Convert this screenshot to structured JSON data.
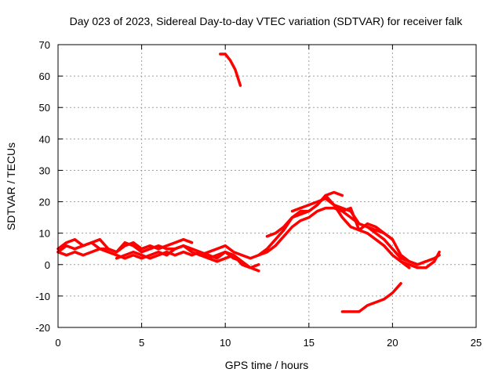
{
  "chart_data": {
    "type": "line",
    "title": "Day 023 of 2023, Sidereal Day-to-day VTEC variation (SDTVAR) for receiver falk",
    "xlabel": "GPS time / hours",
    "ylabel": "SDTVAR / TECUs",
    "xlim": [
      0,
      25
    ],
    "ylim": [
      -20,
      70
    ],
    "xticks": [
      0,
      5,
      10,
      15,
      20,
      25
    ],
    "yticks": [
      -20,
      -10,
      0,
      10,
      20,
      30,
      40,
      50,
      60,
      70
    ],
    "grid": true,
    "legend": "none",
    "series_color": "#ff0000",
    "series": [
      {
        "name": "track-1",
        "x": [
          0.0,
          0.5,
          1.0,
          1.5,
          2.0,
          2.5,
          3.0,
          3.5,
          4.0,
          4.5,
          5.0,
          5.5,
          6.0,
          6.5,
          7.0,
          7.5,
          8.0,
          8.5,
          9.0,
          9.5,
          10.0,
          10.5,
          11.0
        ],
        "y": [
          4,
          6,
          5,
          6,
          7,
          5,
          5,
          4,
          7,
          6,
          4,
          5,
          6,
          5,
          5,
          6,
          4,
          3,
          2,
          3,
          4,
          2,
          1
        ]
      },
      {
        "name": "track-2",
        "x": [
          0.0,
          0.5,
          1.0,
          1.5,
          2.0,
          2.5,
          3.5,
          4.0,
          4.5,
          5.0,
          5.5,
          6.0,
          6.5,
          7.0,
          7.5,
          8.0,
          8.5,
          9.0,
          9.5,
          10.0,
          10.5,
          11.0,
          11.5,
          12.0
        ],
        "y": [
          4,
          3,
          4,
          3,
          4,
          5,
          3,
          2,
          3,
          2,
          3,
          4,
          3,
          5,
          6,
          5,
          4,
          3,
          2,
          4,
          3,
          0,
          -1,
          0
        ]
      },
      {
        "name": "track-3",
        "x": [
          0.0,
          0.5,
          1.0,
          1.5,
          2.0,
          2.5,
          3.0,
          3.5,
          4.0,
          4.5,
          5.0,
          5.5,
          6.0,
          6.5,
          7.0,
          7.5,
          8.0
        ],
        "y": [
          5,
          7,
          8,
          6,
          7,
          8,
          5,
          4,
          6,
          7,
          5,
          6,
          5,
          6,
          7,
          8,
          7
        ]
      },
      {
        "name": "track-4",
        "x": [
          3.5,
          4.0,
          4.5,
          5.0,
          5.5,
          6.0,
          6.5,
          7.0,
          7.5,
          8.0,
          8.5,
          9.0,
          9.5,
          10.0,
          10.5,
          11.0,
          11.5,
          12.0
        ],
        "y": [
          2,
          3,
          4,
          3,
          2,
          3,
          4,
          3,
          4,
          3,
          4,
          2,
          1,
          2,
          3,
          1,
          -1,
          -2
        ]
      },
      {
        "name": "track-5",
        "x": [
          8.5,
          9.0,
          9.5,
          10.0,
          10.5,
          11.0,
          11.5,
          12.0,
          12.5,
          13.0,
          13.5,
          14.0,
          14.5,
          15.0,
          15.5,
          16.0,
          16.5,
          17.0,
          17.5,
          18.0,
          18.5,
          19.0,
          19.5,
          20.0,
          20.5,
          21.0
        ],
        "y": [
          3,
          4,
          5,
          6,
          4,
          3,
          2,
          3,
          5,
          8,
          11,
          15,
          17,
          17,
          19,
          22,
          19,
          15,
          12,
          11,
          10,
          8,
          6,
          3,
          1,
          -1
        ]
      },
      {
        "name": "track-6",
        "x": [
          12.5,
          13.0,
          13.5,
          14.0,
          14.5,
          15.0,
          15.5,
          16.0,
          16.5,
          17.0
        ],
        "y": [
          9,
          10,
          12,
          15,
          16,
          17,
          19,
          22,
          23,
          22
        ]
      },
      {
        "name": "track-7",
        "x": [
          12.0,
          12.5,
          13.0,
          13.5,
          14.0,
          14.5,
          15.0,
          15.5,
          16.0,
          16.5,
          17.0,
          17.5,
          18.0,
          18.5,
          19.0,
          19.5,
          20.0,
          20.5,
          21.0,
          21.5,
          22.0
        ],
        "y": [
          3,
          4,
          6,
          9,
          12,
          14,
          15,
          17,
          18,
          18,
          17,
          15,
          13,
          12,
          10,
          8,
          5,
          2,
          1,
          0,
          1
        ]
      },
      {
        "name": "track-8",
        "x": [
          14.0,
          14.5,
          15.0,
          15.5,
          16.0,
          16.5,
          17.0,
          17.5,
          18.0,
          18.5,
          19.0,
          19.5,
          20.0,
          20.5,
          21.0,
          21.5,
          22.0,
          22.5,
          22.8
        ],
        "y": [
          17,
          18,
          19,
          20,
          21,
          19,
          17,
          18,
          11,
          13,
          12,
          10,
          8,
          3,
          1,
          0,
          1,
          2,
          3
        ]
      },
      {
        "name": "track-9",
        "x": [
          16.5,
          17.0,
          17.5,
          18.0,
          18.5,
          19.0,
          19.5,
          20.0
        ],
        "y": [
          19,
          18,
          17,
          13,
          12,
          11,
          10,
          8
        ]
      },
      {
        "name": "track-10",
        "x": [
          20.5,
          21.0,
          21.5,
          22.0,
          22.5,
          22.8
        ],
        "y": [
          1,
          0,
          -1,
          -1,
          1,
          4
        ]
      },
      {
        "name": "track-11",
        "x": [
          17.0,
          17.5,
          18.0,
          18.5,
          19.0,
          19.5,
          20.0,
          20.5
        ],
        "y": [
          -15,
          -15,
          -15,
          -13,
          -12,
          -11,
          -9,
          -6
        ]
      },
      {
        "name": "track-12",
        "x": [
          9.7,
          10.0,
          10.3,
          10.6,
          10.9
        ],
        "y": [
          67,
          67,
          65,
          62,
          57
        ]
      }
    ]
  }
}
